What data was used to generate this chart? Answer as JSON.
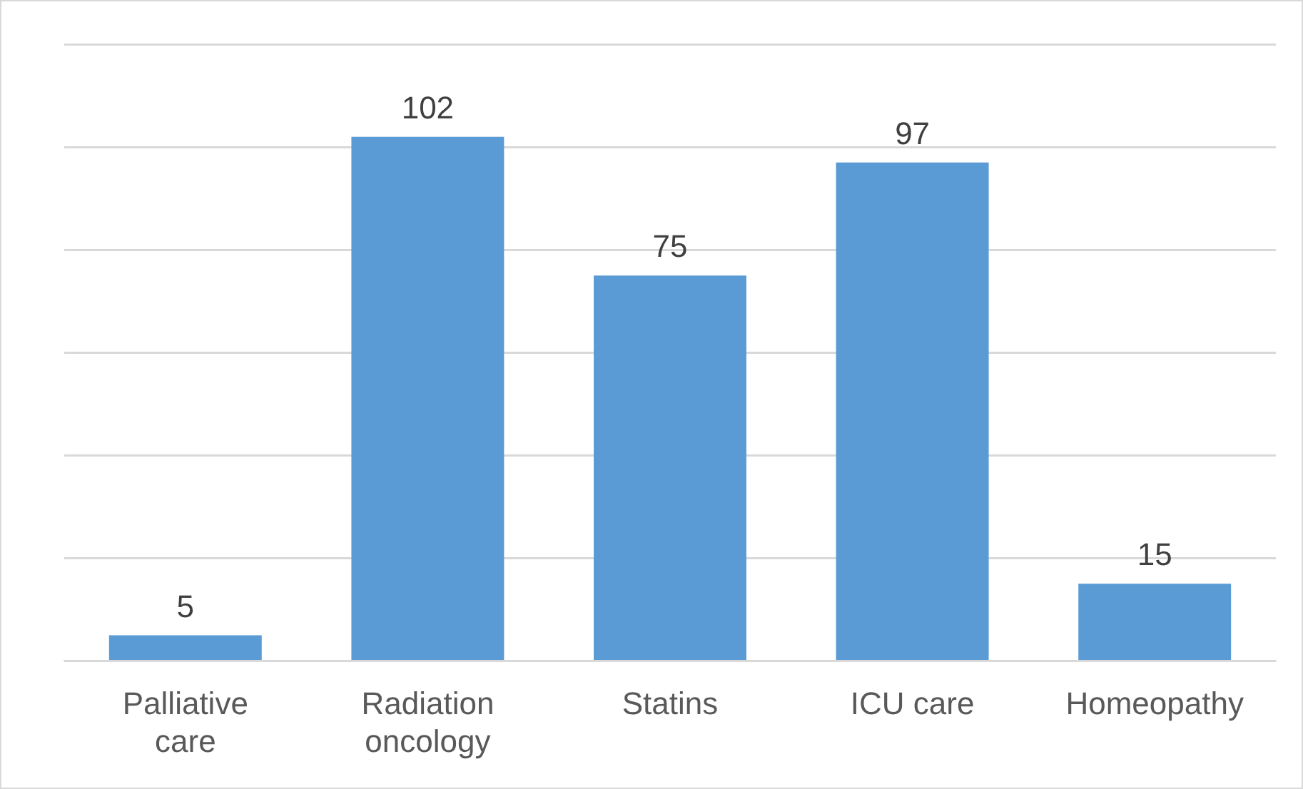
{
  "chart_data": {
    "type": "bar",
    "categories": [
      "Palliative care",
      "Radiation oncology",
      "Statins",
      "ICU care",
      "Homeopathy"
    ],
    "values": [
      5,
      102,
      75,
      97,
      15
    ],
    "color": "#5b9bd5",
    "data_labels": true,
    "grid": "y",
    "ylim": [
      0,
      120
    ],
    "yticks": [
      {
        "value": 0,
        "label": null
      },
      {
        "value": 20,
        "label": null
      },
      {
        "value": 40,
        "label": null
      },
      {
        "value": 60,
        "label": null
      },
      {
        "value": 80,
        "label": null
      },
      {
        "value": 100,
        "label": null
      },
      {
        "value": 120,
        "label": null
      }
    ],
    "legend": false
  }
}
